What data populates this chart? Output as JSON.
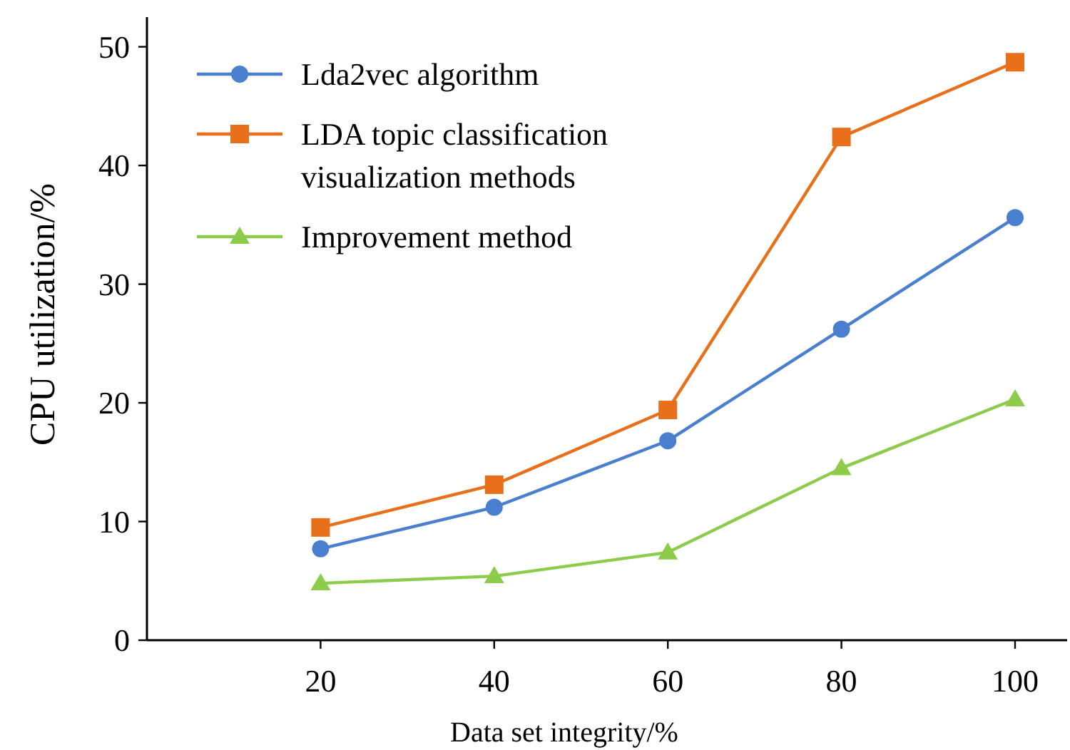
{
  "chart_data": {
    "type": "line",
    "xlabel": "Data set integrity/%",
    "ylabel": "CPU utilization/%",
    "x": [
      20,
      40,
      60,
      80,
      100
    ],
    "series": [
      {
        "name": "Lda2vec algorithm",
        "color": "#4a7fd0",
        "values": [
          7.7,
          11.2,
          16.8,
          26.2,
          35.6
        ],
        "marker": "circle"
      },
      {
        "name": "LDA topic classification visualization methods",
        "color": "#e8701a",
        "values": [
          9.5,
          13.1,
          19.4,
          42.4,
          48.7
        ],
        "marker": "square"
      },
      {
        "name": "Improvement method",
        "color": "#8ccc4a",
        "values": [
          4.8,
          5.4,
          7.4,
          14.5,
          20.3
        ],
        "marker": "triangle"
      }
    ],
    "xlim": [
      0,
      106
    ],
    "ylim": [
      0,
      52.5
    ],
    "xticks": [
      20,
      40,
      60,
      80,
      100
    ],
    "yticks": [
      0,
      10,
      20,
      30,
      40,
      50
    ],
    "grid": false,
    "legend": "top left"
  }
}
